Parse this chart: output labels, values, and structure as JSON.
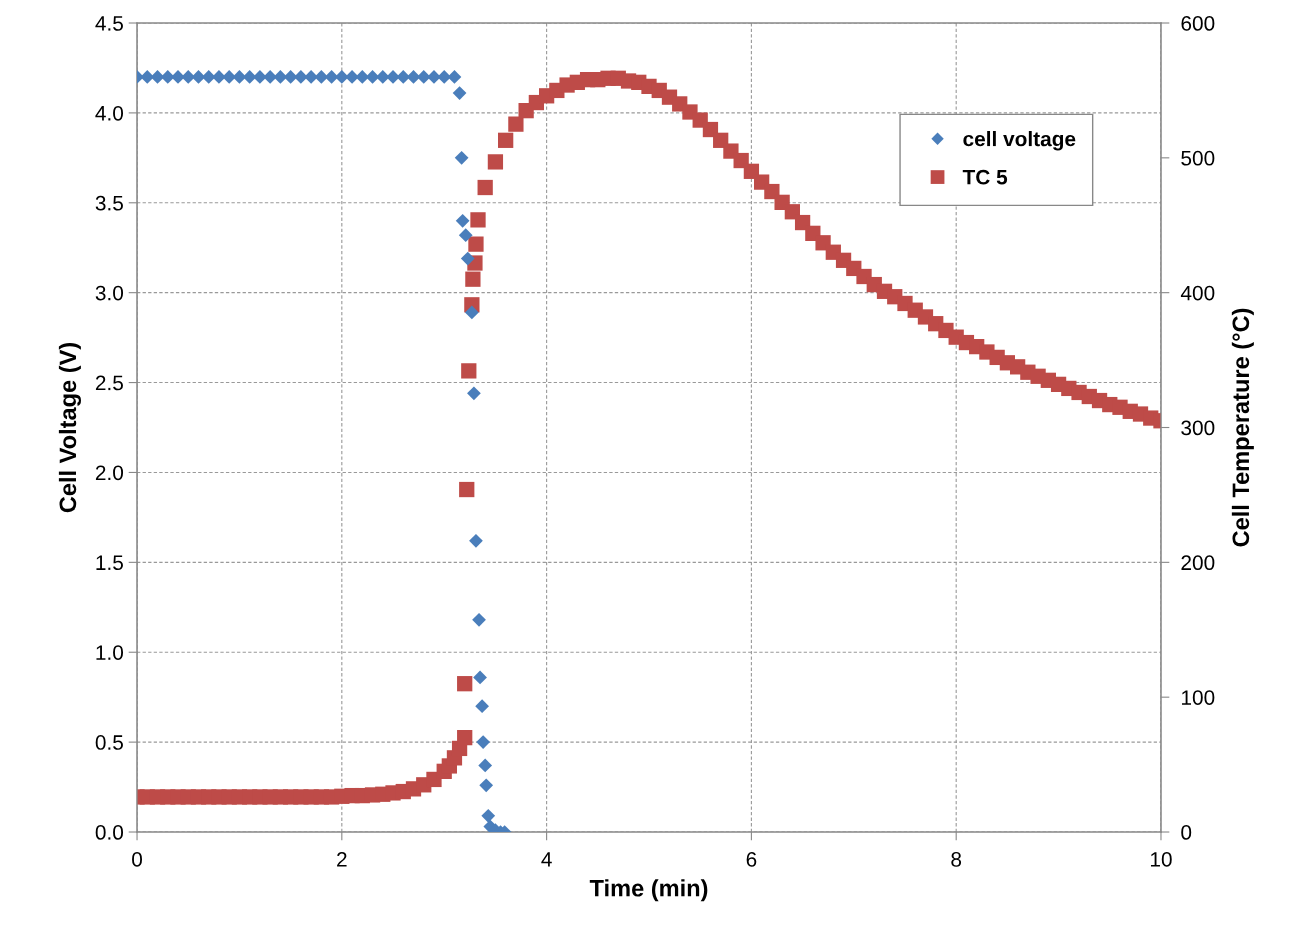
{
  "chart_data": {
    "type": "scatter",
    "xlabel": "Time (min)",
    "ylabel": "Cell Voltage (V)",
    "y2label": "Cell Temperature (°C)",
    "xlim": [
      0,
      10
    ],
    "xticks": [
      0,
      2,
      4,
      6,
      8,
      10
    ],
    "ylim": [
      0,
      4.5
    ],
    "yticks": [
      {
        "value": 0,
        "label": "0.0"
      },
      {
        "value": 0.5,
        "label": "0.5"
      },
      {
        "value": 1,
        "label": "1.0"
      },
      {
        "value": 1.5,
        "label": "1.5"
      },
      {
        "value": 2,
        "label": "2.0"
      },
      {
        "value": 2.5,
        "label": "2.5"
      },
      {
        "value": 3,
        "label": "3.0"
      },
      {
        "value": 3.5,
        "label": "3.5"
      },
      {
        "value": 4,
        "label": "4.0"
      },
      {
        "value": 4.5,
        "label": "4.5"
      }
    ],
    "y2lim": [
      0,
      600
    ],
    "y2ticks": [
      0,
      100,
      200,
      300,
      400,
      500,
      600
    ],
    "grid": true,
    "legend": "top right",
    "series": [
      {
        "name": "cell voltage",
        "color": "#4a7ebb",
        "marker": "diamond",
        "x": [
          0,
          0.1,
          0.2,
          0.3,
          0.4,
          0.5,
          0.6,
          0.7,
          0.8,
          0.9,
          1.0,
          1.1,
          1.2,
          1.3,
          1.4,
          1.5,
          1.6,
          1.7,
          1.8,
          1.9,
          2.0,
          2.1,
          2.2,
          2.3,
          2.4,
          2.5,
          2.6,
          2.7,
          2.8,
          2.9,
          3.0,
          3.1,
          3.15,
          3.17,
          3.18,
          3.21,
          3.23,
          3.27,
          3.29,
          3.31,
          3.34,
          3.35,
          3.37,
          3.38,
          3.4,
          3.41,
          3.43,
          3.45,
          3.5,
          3.55,
          3.59
        ],
        "values": [
          4.2,
          4.2,
          4.2,
          4.2,
          4.2,
          4.2,
          4.2,
          4.2,
          4.2,
          4.2,
          4.2,
          4.2,
          4.2,
          4.2,
          4.2,
          4.2,
          4.2,
          4.2,
          4.2,
          4.2,
          4.2,
          4.2,
          4.2,
          4.2,
          4.2,
          4.2,
          4.2,
          4.2,
          4.2,
          4.2,
          4.2,
          4.2,
          4.11,
          3.75,
          3.4,
          3.32,
          3.19,
          2.89,
          2.44,
          1.62,
          1.18,
          0.86,
          0.7,
          0.5,
          0.37,
          0.26,
          0.09,
          0.03,
          0.01,
          0.0,
          0.0
        ]
      },
      {
        "name": "TC 5",
        "color": "#be4b48",
        "marker": "square",
        "axis": "y2",
        "x": [
          0,
          0.1,
          0.2,
          0.3,
          0.4,
          0.5,
          0.6,
          0.7,
          0.8,
          0.9,
          1.0,
          1.1,
          1.2,
          1.3,
          1.4,
          1.5,
          1.6,
          1.7,
          1.8,
          1.9,
          2.0,
          2.1,
          2.2,
          2.3,
          2.4,
          2.5,
          2.6,
          2.7,
          2.8,
          2.9,
          3.0,
          3.05,
          3.1,
          3.15,
          3.2,
          3.2,
          3.22,
          3.24,
          3.27,
          3.28,
          3.3,
          3.31,
          3.33,
          3.4,
          3.5,
          3.6,
          3.7,
          3.8,
          3.9,
          4.0,
          4.1,
          4.2,
          4.3,
          4.4,
          4.5,
          4.6,
          4.7,
          4.8,
          4.9,
          5.0,
          5.1,
          5.2,
          5.3,
          5.4,
          5.5,
          5.6,
          5.7,
          5.8,
          5.9,
          6.0,
          6.1,
          6.2,
          6.3,
          6.4,
          6.5,
          6.6,
          6.7,
          6.8,
          6.9,
          7.0,
          7.1,
          7.2,
          7.3,
          7.4,
          7.5,
          7.6,
          7.7,
          7.8,
          7.9,
          8.0,
          8.1,
          8.2,
          8.3,
          8.4,
          8.5,
          8.6,
          8.7,
          8.8,
          8.9,
          9.0,
          9.1,
          9.2,
          9.3,
          9.4,
          9.5,
          9.6,
          9.7,
          9.8,
          9.9,
          10.0
        ],
        "values": [
          26,
          26,
          26,
          26,
          26,
          26,
          26,
          26,
          26,
          26,
          26,
          26,
          26,
          26,
          26,
          26,
          26,
          26,
          26,
          26,
          26.5,
          27,
          27,
          27.5,
          28,
          29,
          30,
          32,
          35,
          39,
          45,
          49,
          55,
          62,
          70,
          110,
          254,
          342,
          391,
          410,
          422,
          436,
          454,
          478,
          497,
          513,
          525,
          535,
          541,
          546,
          550,
          554,
          556,
          558,
          558,
          559,
          559,
          557,
          556,
          553,
          550,
          545,
          540,
          534,
          528,
          521,
          513,
          505,
          498,
          490,
          482,
          475,
          467,
          460,
          452,
          444,
          437,
          430,
          424,
          418,
          412,
          406,
          401,
          397,
          392,
          387,
          382,
          377,
          372,
          367,
          363,
          360,
          356,
          352,
          348,
          345,
          341,
          338,
          335,
          332,
          329,
          326,
          323,
          320,
          317,
          315,
          312,
          310,
          307,
          305
        ]
      }
    ]
  }
}
